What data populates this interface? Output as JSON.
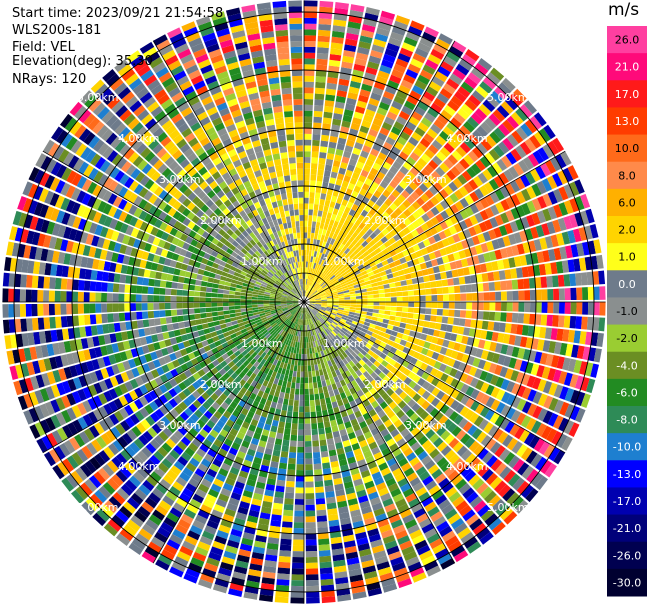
{
  "header": {
    "start_time": "Start time: 2023/09/21 21:54:58",
    "instrument": "WLS200s-181",
    "field": "Field: VEL",
    "elevation": "Elevation(deg): 35.30",
    "nrays": "NRays: 120"
  },
  "colorbar": {
    "unit": "m/s",
    "bins": [
      {
        "label": "26.0",
        "color": "#ff3fa0"
      },
      {
        "label": "21.0",
        "color": "#ff0a7a"
      },
      {
        "label": "17.0",
        "color": "#ff1a1a"
      },
      {
        "label": "13.0",
        "color": "#ff3c00"
      },
      {
        "label": "10.0",
        "color": "#ff6a1a"
      },
      {
        "label": "8.0",
        "color": "#ff8a4a"
      },
      {
        "label": "6.0",
        "color": "#ffb000"
      },
      {
        "label": "2.0",
        "color": "#ffd400"
      },
      {
        "label": "1.0",
        "color": "#ffff1a"
      },
      {
        "label": "0.0",
        "color": "#6e7b8b"
      },
      {
        "label": "-1.0",
        "color": "#8a8f8f"
      },
      {
        "label": "-2.0",
        "color": "#9acd32"
      },
      {
        "label": "-4.0",
        "color": "#6b8e23"
      },
      {
        "label": "-6.0",
        "color": "#228b22"
      },
      {
        "label": "-8.0",
        "color": "#2e8b57"
      },
      {
        "label": "-10.0",
        "color": "#1e7fd0"
      },
      {
        "label": "-13.0",
        "color": "#0000ff"
      },
      {
        "label": "-17.0",
        "color": "#0000b0"
      },
      {
        "label": "-21.0",
        "color": "#00007a"
      },
      {
        "label": "-26.0",
        "color": "#000050"
      },
      {
        "label": "-30.0",
        "color": "#000030"
      }
    ]
  },
  "chart_data": {
    "type": "heatmap",
    "projection": "polar PPI",
    "field": "VEL",
    "unit": "m/s",
    "nrays": 120,
    "range_rings_km": [
      1.0,
      2.0,
      3.0,
      4.0,
      5.0
    ],
    "range_ring_labels": [
      "1.00km",
      "2.00km",
      "3.00km",
      "4.00km",
      "5.00km"
    ],
    "max_range_km": 5.2,
    "pattern": "positive (warm) velocities to the north-east / east, negative (green/blue) velocities to the south-west; noisy multicolor values at far ranges",
    "sector_means": [
      {
        "azimuth_deg": 0,
        "near_ms": 1.5,
        "far_ms": 4.0
      },
      {
        "azimuth_deg": 45,
        "near_ms": 3.0,
        "far_ms": 8.0
      },
      {
        "azimuth_deg": 90,
        "near_ms": 2.0,
        "far_ms": 6.0
      },
      {
        "azimuth_deg": 135,
        "near_ms": -0.5,
        "far_ms": 1.5
      },
      {
        "azimuth_deg": 180,
        "near_ms": -3.0,
        "far_ms": -6.0
      },
      {
        "azimuth_deg": 225,
        "near_ms": -4.0,
        "far_ms": -9.0
      },
      {
        "azimuth_deg": 270,
        "near_ms": -3.0,
        "far_ms": -6.0
      },
      {
        "azimuth_deg": 315,
        "near_ms": -1.5,
        "far_ms": -0.5
      }
    ]
  }
}
